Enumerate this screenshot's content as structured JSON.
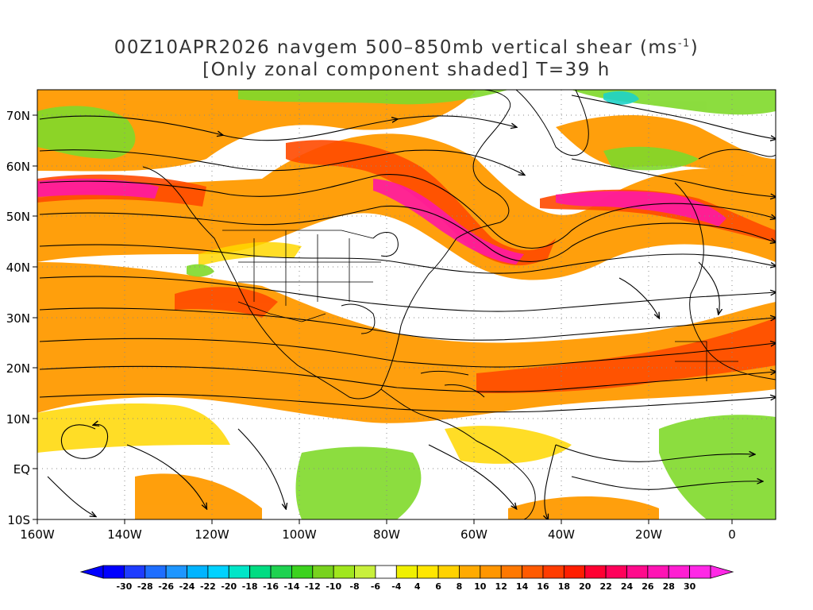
{
  "title": {
    "line1_prefix": "00Z10APR2026 navgem 500–850mb vertical shear (ms",
    "line1_superscript": "-1",
    "line1_suffix": ")",
    "line2": "[Only zonal component shaded] T=39 h"
  },
  "map": {
    "lon_range": [
      -160,
      10
    ],
    "lat_range": [
      -10,
      75
    ],
    "x_ticks": [
      "160W",
      "140W",
      "120W",
      "100W",
      "80W",
      "60W",
      "40W",
      "20W",
      "0"
    ],
    "y_ticks": [
      "10S",
      "EQ",
      "10N",
      "20N",
      "30N",
      "40N",
      "50N",
      "60N",
      "70N"
    ],
    "grid": "dotted",
    "overlay": "streamlines"
  },
  "colorbar": {
    "ticks": [
      "-30",
      "-28",
      "-26",
      "-24",
      "-22",
      "-20",
      "-18",
      "-16",
      "-14",
      "-12",
      "-10",
      "-8",
      "-6",
      "-4",
      "4",
      "6",
      "8",
      "10",
      "12",
      "14",
      "16",
      "18",
      "20",
      "22",
      "24",
      "26",
      "28",
      "30"
    ],
    "colors": [
      "#0000ff",
      "#1e3cff",
      "#1e6eff",
      "#1e96ff",
      "#00b4ff",
      "#00d2ff",
      "#00e6c8",
      "#00dc82",
      "#1ed250",
      "#3cd21e",
      "#78d21e",
      "#a0e61e",
      "#c8f03c",
      "#ffffff",
      "#f0f000",
      "#ffe600",
      "#ffd200",
      "#ffaa00",
      "#ff9600",
      "#ff7800",
      "#ff5a00",
      "#ff3c00",
      "#ff1e00",
      "#ff0032",
      "#ff005a",
      "#ff0a8c",
      "#ff14b4",
      "#ff1ed2",
      "#ff28e6"
    ],
    "extend": "both"
  }
}
